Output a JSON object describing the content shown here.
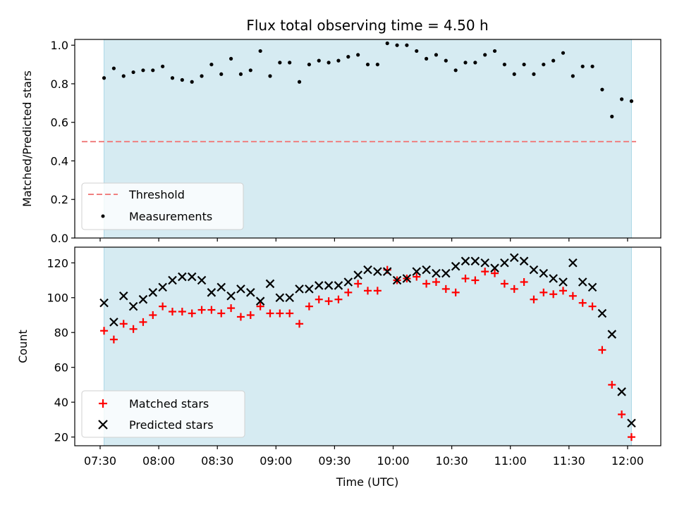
{
  "chart_data": [
    {
      "type": "scatter",
      "title": "Flux total observing time = 4.50 h",
      "xlabel": "",
      "ylabel": "Matched/Predicted stars",
      "ylim": [
        0.0,
        1.03
      ],
      "yticks": [
        0.0,
        0.2,
        0.4,
        0.6,
        0.8,
        1.0
      ],
      "ytick_labels": [
        "0.0",
        "0.2",
        "0.4",
        "0.6",
        "0.8",
        "1.0"
      ],
      "observing_window": [
        "07:32",
        "12:02"
      ],
      "threshold": 0.5,
      "legend_position": "lower-left",
      "series": [
        {
          "name": "Threshold",
          "kind": "dashed-line",
          "color": "#f08080",
          "values": [
            0.5,
            0.5
          ]
        },
        {
          "name": "Measurements",
          "kind": "dot",
          "color": "#000000",
          "x": [
            "07:32",
            "07:37",
            "07:42",
            "07:47",
            "07:52",
            "07:57",
            "08:02",
            "08:07",
            "08:12",
            "08:17",
            "08:22",
            "08:27",
            "08:32",
            "08:37",
            "08:42",
            "08:47",
            "08:52",
            "08:57",
            "09:02",
            "09:07",
            "09:12",
            "09:17",
            "09:22",
            "09:27",
            "09:32",
            "09:37",
            "09:42",
            "09:47",
            "09:52",
            "09:57",
            "10:02",
            "10:07",
            "10:12",
            "10:17",
            "10:22",
            "10:27",
            "10:32",
            "10:37",
            "10:42",
            "10:47",
            "10:52",
            "10:57",
            "11:02",
            "11:07",
            "11:12",
            "11:17",
            "11:22",
            "11:27",
            "11:32",
            "11:37",
            "11:42",
            "11:47",
            "11:52",
            "11:57",
            "12:02"
          ],
          "values": [
            0.83,
            0.88,
            0.84,
            0.86,
            0.87,
            0.87,
            0.89,
            0.83,
            0.82,
            0.81,
            0.84,
            0.9,
            0.85,
            0.93,
            0.85,
            0.87,
            0.97,
            0.84,
            0.91,
            0.91,
            0.81,
            0.9,
            0.92,
            0.91,
            0.92,
            0.94,
            0.95,
            0.9,
            0.9,
            1.01,
            1.0,
            1.0,
            0.97,
            0.93,
            0.95,
            0.92,
            0.87,
            0.91,
            0.91,
            0.95,
            0.97,
            0.9,
            0.85,
            0.9,
            0.85,
            0.9,
            0.92,
            0.96,
            0.84,
            0.89,
            0.89,
            0.77,
            0.63,
            0.72,
            0.71
          ]
        }
      ]
    },
    {
      "type": "scatter",
      "title": "",
      "xlabel": "Time (UTC)",
      "ylabel": "Count",
      "ylim": [
        15,
        129
      ],
      "yticks": [
        20,
        40,
        60,
        80,
        100,
        120
      ],
      "ytick_labels": [
        "20",
        "40",
        "60",
        "80",
        "100",
        "120"
      ],
      "xticks": [
        "07:30",
        "08:00",
        "08:30",
        "09:00",
        "09:30",
        "10:00",
        "10:30",
        "11:00",
        "11:30",
        "12:00"
      ],
      "xlim": [
        "07:17",
        "12:17"
      ],
      "observing_window": [
        "07:32",
        "12:02"
      ],
      "legend_position": "lower-left",
      "series": [
        {
          "name": "Matched stars",
          "kind": "plus",
          "color": "#ff0000",
          "x": [
            "07:32",
            "07:37",
            "07:42",
            "07:47",
            "07:52",
            "07:57",
            "08:02",
            "08:07",
            "08:12",
            "08:17",
            "08:22",
            "08:27",
            "08:32",
            "08:37",
            "08:42",
            "08:47",
            "08:52",
            "08:57",
            "09:02",
            "09:07",
            "09:12",
            "09:17",
            "09:22",
            "09:27",
            "09:32",
            "09:37",
            "09:42",
            "09:47",
            "09:52",
            "09:57",
            "10:02",
            "10:07",
            "10:12",
            "10:17",
            "10:22",
            "10:27",
            "10:32",
            "10:37",
            "10:42",
            "10:47",
            "10:52",
            "10:57",
            "11:02",
            "11:07",
            "11:12",
            "11:17",
            "11:22",
            "11:27",
            "11:32",
            "11:37",
            "11:42",
            "11:47",
            "11:52",
            "11:57",
            "12:02"
          ],
          "values": [
            81,
            76,
            85,
            82,
            86,
            90,
            95,
            92,
            92,
            91,
            93,
            93,
            91,
            94,
            89,
            90,
            95,
            91,
            91,
            91,
            85,
            95,
            99,
            98,
            99,
            103,
            108,
            104,
            104,
            116,
            110,
            111,
            112,
            108,
            109,
            105,
            103,
            111,
            110,
            115,
            114,
            108,
            105,
            109,
            99,
            103,
            102,
            104,
            101,
            97,
            95,
            70,
            50,
            33,
            20
          ]
        },
        {
          "name": "Predicted stars",
          "kind": "cross",
          "color": "#000000",
          "x": [
            "07:32",
            "07:37",
            "07:42",
            "07:47",
            "07:52",
            "07:57",
            "08:02",
            "08:07",
            "08:12",
            "08:17",
            "08:22",
            "08:27",
            "08:32",
            "08:37",
            "08:42",
            "08:47",
            "08:52",
            "08:57",
            "09:02",
            "09:07",
            "09:12",
            "09:17",
            "09:22",
            "09:27",
            "09:32",
            "09:37",
            "09:42",
            "09:47",
            "09:52",
            "09:57",
            "10:02",
            "10:07",
            "10:12",
            "10:17",
            "10:22",
            "10:27",
            "10:32",
            "10:37",
            "10:42",
            "10:47",
            "10:52",
            "10:57",
            "11:02",
            "11:07",
            "11:12",
            "11:17",
            "11:22",
            "11:27",
            "11:32",
            "11:37",
            "11:42",
            "11:47",
            "11:52",
            "11:57",
            "12:02"
          ],
          "values": [
            97,
            86,
            101,
            95,
            99,
            103,
            106,
            110,
            112,
            112,
            110,
            103,
            106,
            101,
            105,
            103,
            98,
            108,
            100,
            100,
            105,
            105,
            107,
            107,
            107,
            109,
            113,
            116,
            115,
            115,
            110,
            111,
            115,
            116,
            114,
            114,
            118,
            121,
            121,
            120,
            117,
            120,
            123,
            121,
            116,
            114,
            111,
            109,
            120,
            109,
            106,
            91,
            79,
            46,
            28
          ]
        }
      ]
    }
  ]
}
